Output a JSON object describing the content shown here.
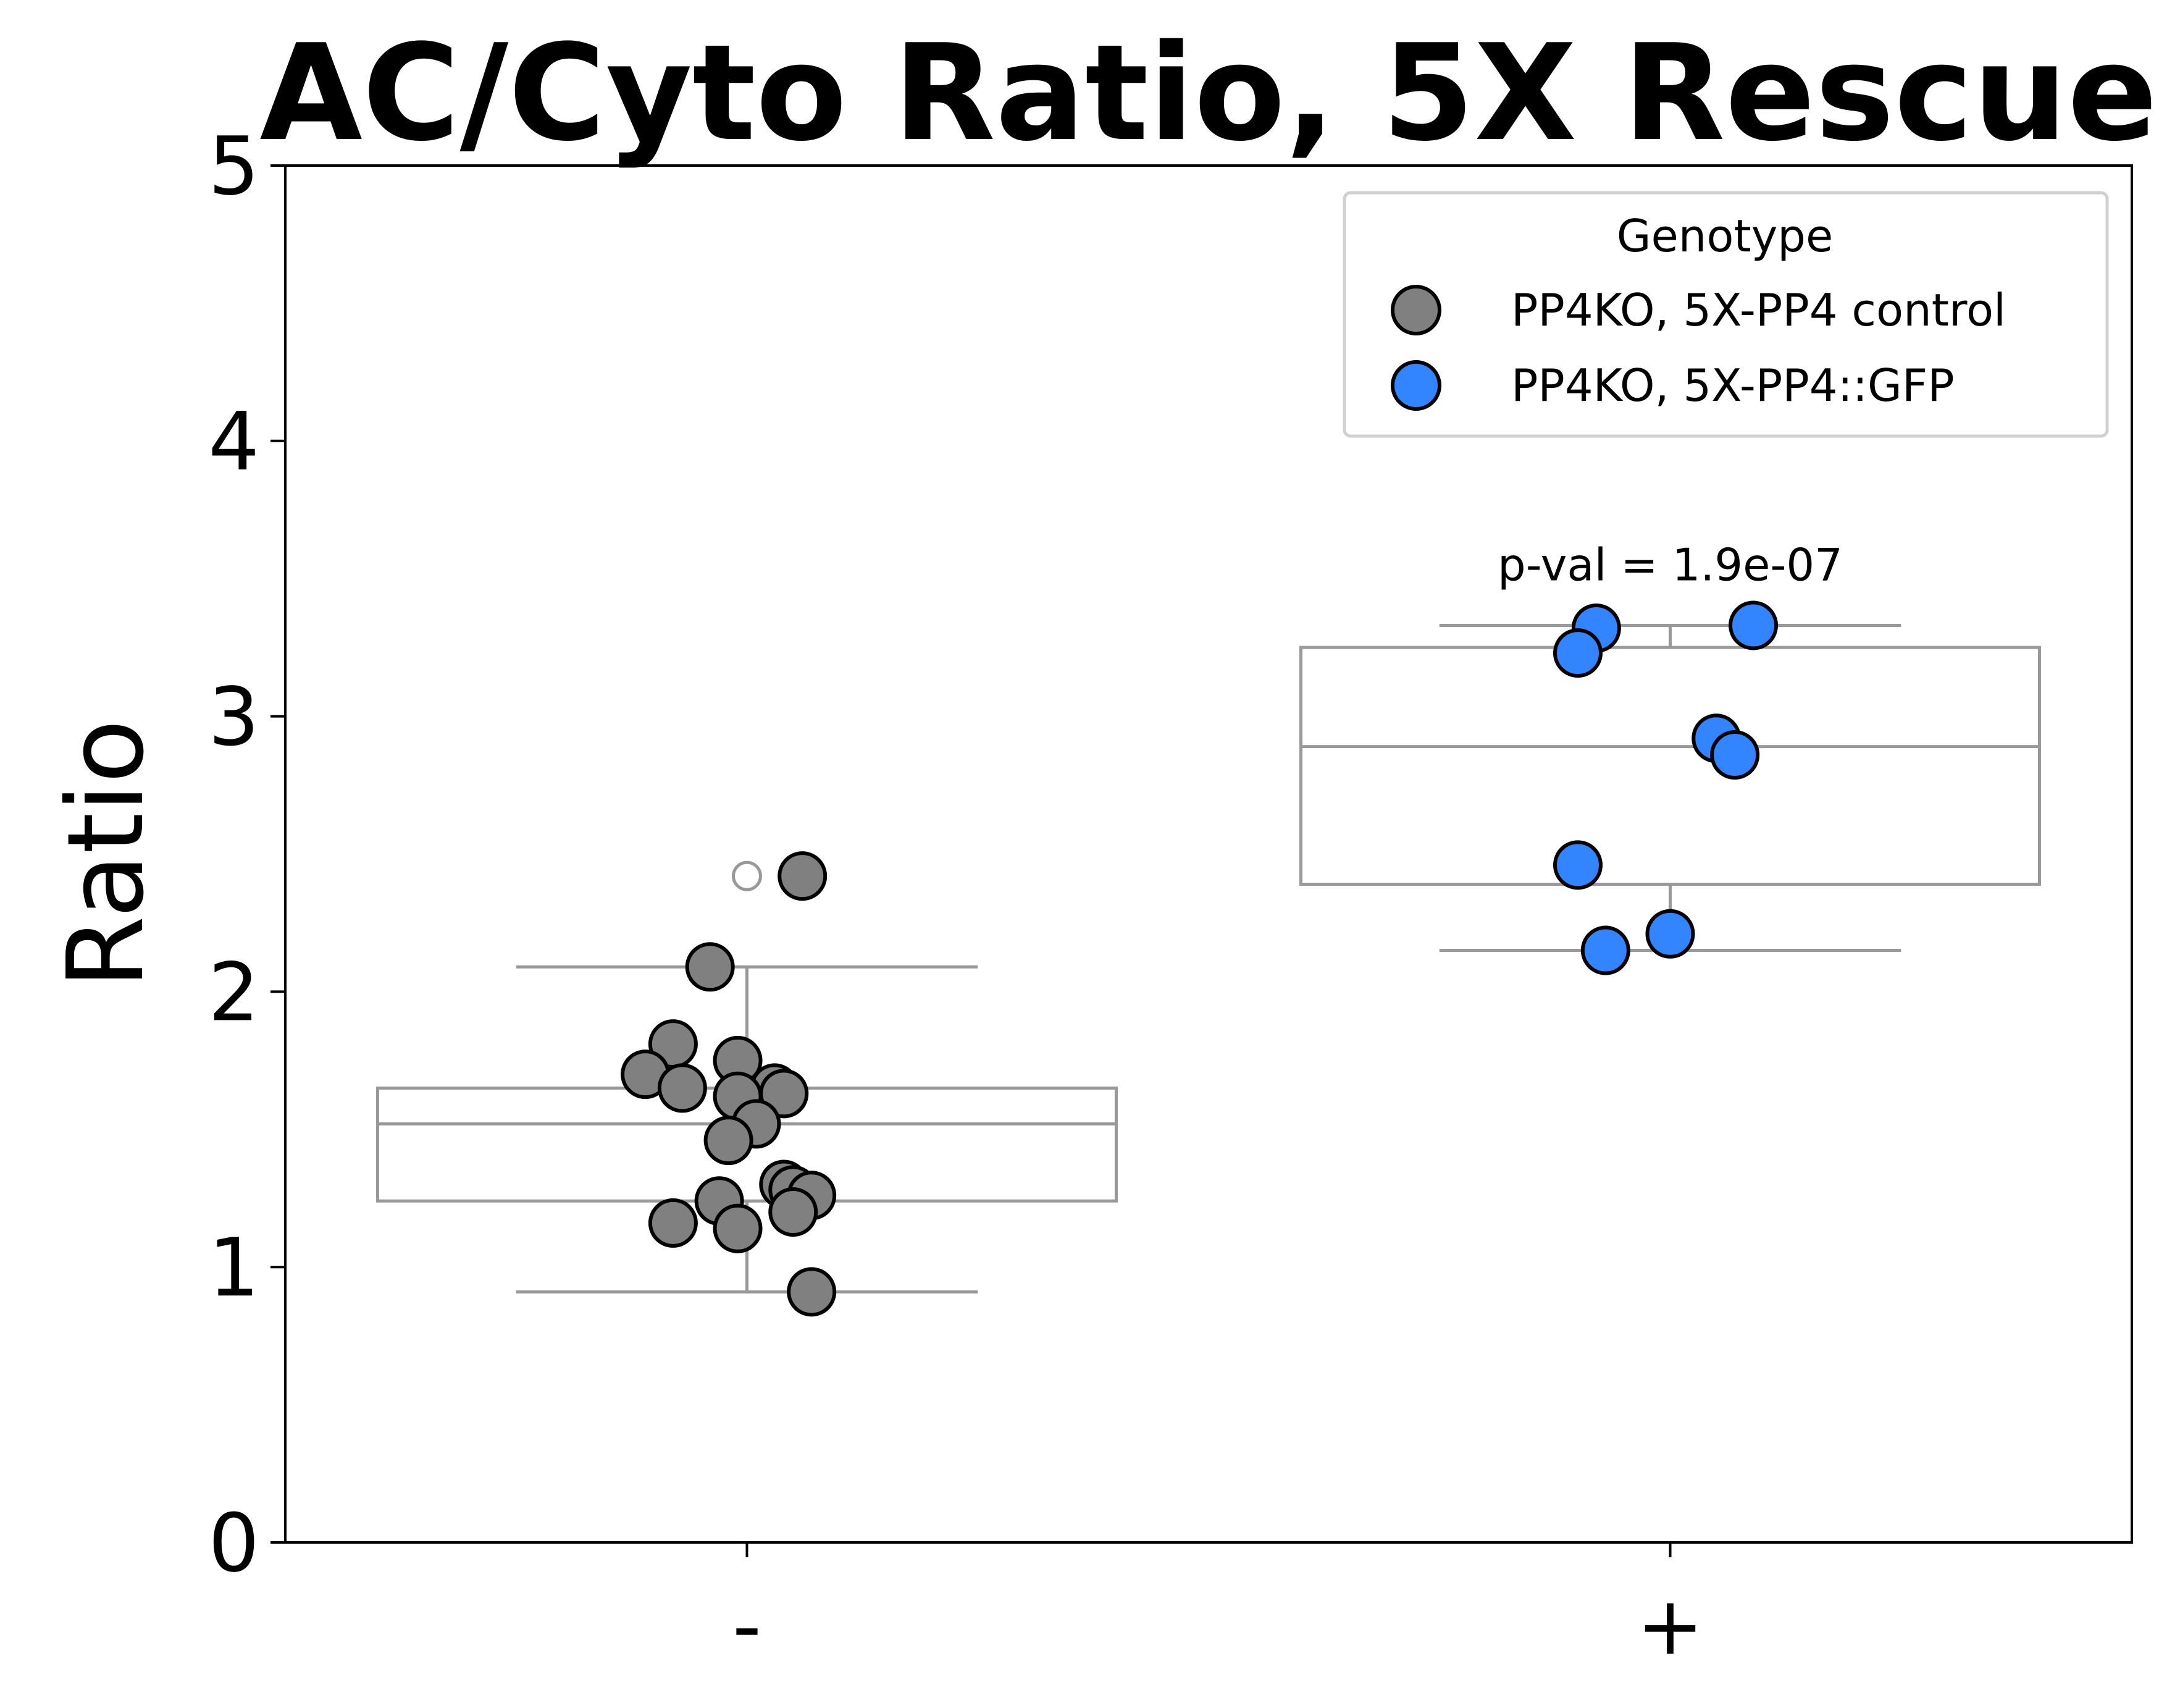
{
  "chart_data": {
    "type": "box",
    "title": "AC/Cyto Ratio, 5X Rescue",
    "xlabel": "",
    "ylabel": "Ratio",
    "ylim": [
      0,
      5
    ],
    "yticks": [
      "0",
      "1",
      "2",
      "3",
      "4",
      "5"
    ],
    "categories": [
      "-",
      "+"
    ],
    "grid": false,
    "legend": {
      "title": "Genotype",
      "placement": "top-right",
      "entries": [
        {
          "label": "PP4KO, 5X-PP4 control",
          "color": "#808080"
        },
        {
          "label": "PP4KO, 5X-PP4::GFP",
          "color": "#3385ff"
        }
      ]
    },
    "boxes": [
      {
        "category": "-",
        "q1": 1.24,
        "median": 1.52,
        "q3": 1.65,
        "whisker_low": 0.91,
        "whisker_high": 2.09,
        "outliers": [
          2.42
        ]
      },
      {
        "category": "+",
        "q1": 2.39,
        "median": 2.89,
        "q3": 3.25,
        "whisker_low": 2.15,
        "whisker_high": 3.33,
        "outliers": []
      }
    ],
    "series": [
      {
        "name": "PP4KO, 5X-PP4 control",
        "category": "-",
        "color": "#808080",
        "points": [
          {
            "dx": 0.06,
            "y": 2.42
          },
          {
            "dx": -0.04,
            "y": 2.09
          },
          {
            "dx": -0.08,
            "y": 1.81
          },
          {
            "dx": -0.01,
            "y": 1.75
          },
          {
            "dx": -0.11,
            "y": 1.7
          },
          {
            "dx": -0.07,
            "y": 1.65
          },
          {
            "dx": 0.03,
            "y": 1.65
          },
          {
            "dx": 0.04,
            "y": 1.63
          },
          {
            "dx": -0.01,
            "y": 1.62
          },
          {
            "dx": 0.01,
            "y": 1.52
          },
          {
            "dx": -0.02,
            "y": 1.46
          },
          {
            "dx": 0.04,
            "y": 1.3
          },
          {
            "dx": 0.05,
            "y": 1.28
          },
          {
            "dx": -0.03,
            "y": 1.24
          },
          {
            "dx": 0.07,
            "y": 1.26
          },
          {
            "dx": 0.05,
            "y": 1.2
          },
          {
            "dx": -0.08,
            "y": 1.16
          },
          {
            "dx": -0.01,
            "y": 1.14
          },
          {
            "dx": 0.07,
            "y": 0.91
          }
        ]
      },
      {
        "name": "PP4KO, 5X-PP4::GFP",
        "category": "+",
        "color": "#3385ff",
        "points": [
          {
            "dx": -0.08,
            "y": 3.32
          },
          {
            "dx": 0.09,
            "y": 3.33
          },
          {
            "dx": -0.1,
            "y": 3.23
          },
          {
            "dx": 0.05,
            "y": 2.92
          },
          {
            "dx": 0.07,
            "y": 2.86
          },
          {
            "dx": -0.1,
            "y": 2.46
          },
          {
            "dx": 0.0,
            "y": 2.21
          },
          {
            "dx": -0.07,
            "y": 2.15
          }
        ]
      }
    ],
    "annotations": [
      {
        "text": "p-val = 1.9e-07",
        "category": "+",
        "y": 3.55
      }
    ]
  }
}
